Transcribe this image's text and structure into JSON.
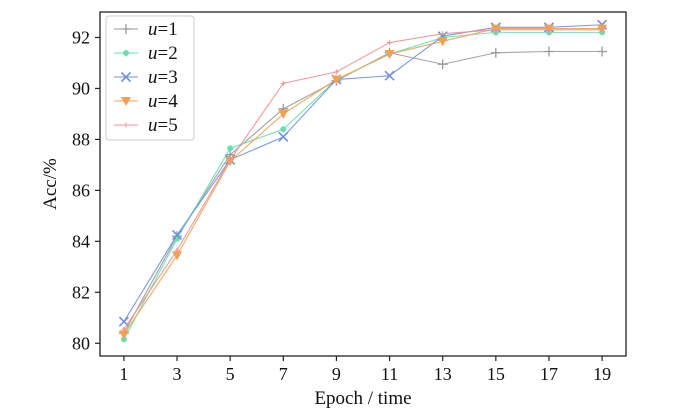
{
  "chart_data": {
    "type": "line",
    "xlabel": "Epoch / time",
    "ylabel": "Acc/%",
    "x": [
      1,
      3,
      5,
      7,
      9,
      11,
      13,
      15,
      17,
      19
    ],
    "xticks": [
      "1",
      "3",
      "5",
      "7",
      "9",
      "11",
      "13",
      "15",
      "17",
      "19"
    ],
    "yticks": [
      "80",
      "82",
      "84",
      "86",
      "88",
      "90",
      "92"
    ],
    "ylim": [
      79.5,
      93.0
    ],
    "xlim": [
      0.1,
      19.9
    ],
    "grid": false,
    "legend_position": "top-left",
    "series": [
      {
        "name": "u=1",
        "label_var": "u",
        "label_val": "=1",
        "color": "#999999",
        "marker": "plus",
        "values": [
          80.4,
          84.2,
          87.4,
          89.2,
          90.3,
          91.4,
          90.95,
          91.4,
          91.45,
          91.45
        ]
      },
      {
        "name": "u=2",
        "label_var": "u",
        "label_val": "=2",
        "color": "#66e0b0",
        "marker": "dot",
        "values": [
          80.15,
          84.1,
          87.65,
          88.4,
          90.35,
          91.35,
          92.0,
          92.2,
          92.2,
          92.2
        ]
      },
      {
        "name": "u=3",
        "label_var": "u",
        "label_val": "=3",
        "color": "#6f8fe0",
        "marker": "x",
        "values": [
          80.85,
          84.25,
          87.2,
          88.1,
          90.35,
          90.5,
          92.05,
          92.4,
          92.4,
          92.5
        ]
      },
      {
        "name": "u=4",
        "label_var": "u",
        "label_val": "=4",
        "color": "#f5a050",
        "marker": "tri",
        "values": [
          80.35,
          83.45,
          87.15,
          89.0,
          90.35,
          91.35,
          91.85,
          92.35,
          92.35,
          92.35
        ]
      },
      {
        "name": "u=5",
        "label_var": "u",
        "label_val": "=5",
        "color": "#f49090",
        "marker": "small",
        "values": [
          80.55,
          83.65,
          87.2,
          90.2,
          90.65,
          91.8,
          92.15,
          92.3,
          92.3,
          92.3
        ]
      }
    ]
  }
}
